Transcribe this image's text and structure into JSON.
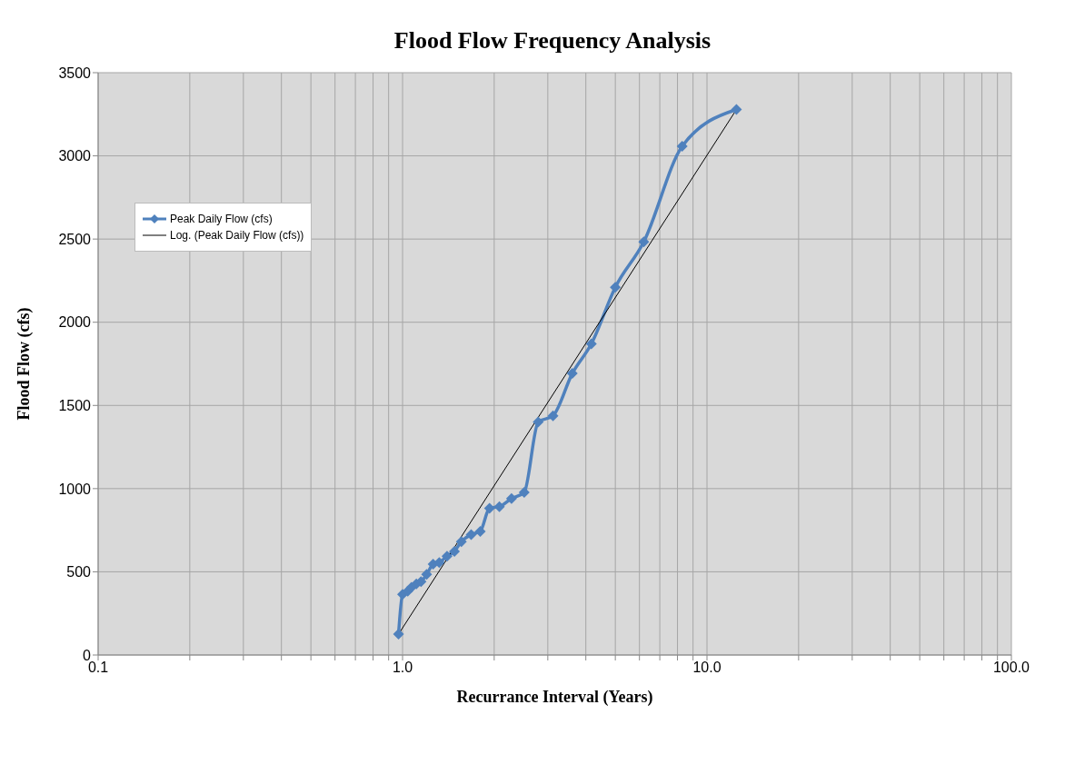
{
  "chart_data": {
    "type": "line",
    "title": "Flood Flow Frequency Analysis",
    "xlabel": "Recurrance Interval (Years)",
    "ylabel": "Flood Flow (cfs)",
    "series": [
      {
        "name": "Peak Daily Flow (cfs)",
        "color": "#4f81bd",
        "marker": "diamond",
        "line_style": "solid",
        "x": [
          0.97,
          1.0,
          1.04,
          1.07,
          1.11,
          1.15,
          1.2,
          1.26,
          1.32,
          1.4,
          1.48,
          1.56,
          1.68,
          1.8,
          1.93,
          2.08,
          2.28,
          2.51,
          2.79,
          3.12,
          3.61,
          4.17,
          5.0,
          6.2,
          8.29,
          12.5
        ],
        "values": [
          125,
          364,
          384,
          407,
          427,
          441,
          484,
          546,
          556,
          594,
          623,
          681,
          724,
          743,
          882,
          892,
          940,
          978,
          1400,
          1438,
          1692,
          1870,
          2210,
          2483,
          3058,
          3279
        ]
      },
      {
        "name": "Log. (Peak Daily Flow (cfs))",
        "color": "#000000",
        "marker": "none",
        "line_style": "solid",
        "x": [
          0.97,
          12.5
        ],
        "values": [
          125,
          3279
        ]
      }
    ],
    "log": "x",
    "xlim": [
      0.1,
      100
    ],
    "xticks": [
      {
        "value": 0.1,
        "label": "0.1"
      },
      {
        "value": 0.2,
        "label": null
      },
      {
        "value": 0.3,
        "label": null
      },
      {
        "value": 0.4,
        "label": null
      },
      {
        "value": 0.5,
        "label": null
      },
      {
        "value": 0.6,
        "label": null
      },
      {
        "value": 0.7,
        "label": null
      },
      {
        "value": 0.8,
        "label": null
      },
      {
        "value": 0.9,
        "label": null
      },
      {
        "value": 1,
        "label": "1.0"
      },
      {
        "value": 2,
        "label": null
      },
      {
        "value": 3,
        "label": null
      },
      {
        "value": 4,
        "label": null
      },
      {
        "value": 5,
        "label": null
      },
      {
        "value": 6,
        "label": null
      },
      {
        "value": 7,
        "label": null
      },
      {
        "value": 8,
        "label": null
      },
      {
        "value": 9,
        "label": null
      },
      {
        "value": 10,
        "label": "10.0"
      },
      {
        "value": 20,
        "label": null
      },
      {
        "value": 30,
        "label": null
      },
      {
        "value": 40,
        "label": null
      },
      {
        "value": 50,
        "label": null
      },
      {
        "value": 60,
        "label": null
      },
      {
        "value": 70,
        "label": null
      },
      {
        "value": 80,
        "label": null
      },
      {
        "value": 90,
        "label": null
      },
      {
        "value": 100,
        "label": "100.0"
      }
    ],
    "ylim": [
      0,
      3500
    ],
    "yticks": [
      0,
      500,
      1000,
      1500,
      2000,
      2500,
      3000,
      3500
    ],
    "grid": true,
    "legend": "top left"
  }
}
